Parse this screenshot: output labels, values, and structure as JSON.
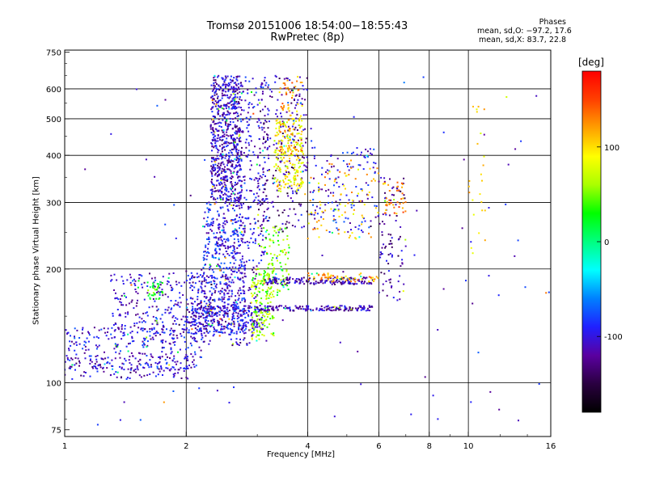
{
  "header": {
    "title_line1": "Tromsø 20151006 18:54:00−18:55:43",
    "title_line2": "RwPretec (8p)",
    "phase_title": "Phases",
    "stat_o": "mean, sd,O: −97.2, 17.6",
    "stat_x": "mean, sd,X:  83.7, 22.8"
  },
  "chart_data": {
    "type": "scatter",
    "title": "Tromsø 20151006 18:54:00−18:55:43",
    "subtitle": "RwPretec (8p)",
    "xlabel": "Frequency [MHz]",
    "ylabel": "Stationary phase Virtual Height [km]",
    "x_scale": "log",
    "y_scale": "log",
    "xlim": [
      1,
      16
    ],
    "ylim": [
      72,
      760
    ],
    "x_ticks": [
      1,
      2,
      4,
      6,
      8,
      10,
      16
    ],
    "x_tick_labels": [
      "1",
      "2",
      "4",
      "6",
      "8",
      "10",
      "16"
    ],
    "y_ticks": [
      75,
      100,
      200,
      300,
      400,
      500,
      600,
      750
    ],
    "y_tick_labels": [
      "75",
      "100",
      "200",
      "300",
      "400",
      "500",
      "600",
      "750"
    ],
    "x_gridlines": [
      1,
      2,
      4,
      6,
      8,
      10,
      16
    ],
    "y_gridlines": [
      100,
      200,
      300,
      400,
      500,
      600
    ],
    "grid": true,
    "colorbar": {
      "unit": "[deg]",
      "range": [
        -180,
        180
      ],
      "ticks": [
        100,
        0,
        -100
      ],
      "tick_labels": [
        "100",
        "0",
        "-100"
      ],
      "colors": [
        "#000000",
        "#2a0040",
        "#5a00a0",
        "#2020ff",
        "#0080ff",
        "#00ffff",
        "#00ff80",
        "#00ff00",
        "#aaff00",
        "#ffff00",
        "#ffa000",
        "#ff4000",
        "#ff0000"
      ]
    },
    "series": [
      {
        "x_range": [
          1.0,
          2.1
        ],
        "y_range": [
          102,
          118
        ],
        "phase": -110,
        "count": 120
      },
      {
        "x_range": [
          1.0,
          2.2
        ],
        "y_range": [
          108,
          140
        ],
        "phase": -100,
        "count": 260
      },
      {
        "x_range": [
          1.3,
          2.2
        ],
        "y_range": [
          130,
          195
        ],
        "phase": -105,
        "count": 260
      },
      {
        "x_range": [
          1.6,
          1.75
        ],
        "y_range": [
          165,
          185
        ],
        "phase": 30,
        "count": 40
      },
      {
        "x_range": [
          2.0,
          3.1
        ],
        "y_range": [
          135,
          160
        ],
        "phase": -100,
        "count": 300
      },
      {
        "x_range": [
          2.3,
          2.75
        ],
        "y_range": [
          300,
          650
        ],
        "phase": -110,
        "count": 700
      },
      {
        "x_range": [
          2.2,
          2.8
        ],
        "y_range": [
          150,
          300
        ],
        "phase": -95,
        "count": 420
      },
      {
        "x_range": [
          2.0,
          3.0
        ],
        "y_range": [
          125,
          200
        ],
        "phase": -110,
        "count": 200
      },
      {
        "x_range": [
          2.6,
          3.2
        ],
        "y_range": [
          200,
          650
        ],
        "phase": -100,
        "count": 260
      },
      {
        "x_range": [
          2.9,
          3.3
        ],
        "y_range": [
          130,
          200
        ],
        "phase": 60,
        "count": 140
      },
      {
        "x_range": [
          3.0,
          3.6
        ],
        "y_range": [
          170,
          260
        ],
        "phase": 50,
        "count": 120
      },
      {
        "x_range": [
          3.0,
          4.0
        ],
        "y_range": [
          250,
          650
        ],
        "phase": -120,
        "count": 220
      },
      {
        "x_range": [
          3.3,
          3.9
        ],
        "y_range": [
          320,
          500
        ],
        "phase": 90,
        "count": 220
      },
      {
        "x_range": [
          3.4,
          3.9
        ],
        "y_range": [
          400,
          650
        ],
        "phase": 120,
        "count": 80
      },
      {
        "x_range": [
          3.0,
          5.8
        ],
        "y_range": [
          155,
          160
        ],
        "phase": -110,
        "count": 160
      },
      {
        "x_range": [
          3.1,
          5.8
        ],
        "y_range": [
          182,
          190
        ],
        "phase": -115,
        "count": 170
      },
      {
        "x_range": [
          4.0,
          6.0
        ],
        "y_range": [
          185,
          195
        ],
        "phase": 120,
        "count": 60
      },
      {
        "x_range": [
          4.0,
          6.0
        ],
        "y_range": [
          250,
          420
        ],
        "phase": -100,
        "count": 140
      },
      {
        "x_range": [
          4.0,
          6.0
        ],
        "y_range": [
          240,
          380
        ],
        "phase": 110,
        "count": 90
      },
      {
        "x_range": [
          6.0,
          7.0
        ],
        "y_range": [
          165,
          350
        ],
        "phase": -120,
        "count": 90
      },
      {
        "x_range": [
          6.2,
          7.0
        ],
        "y_range": [
          280,
          340
        ],
        "phase": 130,
        "count": 40
      },
      {
        "x_range": [
          1.0,
          16.0
        ],
        "y_range": [
          75,
          650
        ],
        "phase": -100,
        "count": 90
      },
      {
        "x_range": [
          10.0,
          11.0
        ],
        "y_range": [
          200,
          600
        ],
        "phase": 100,
        "count": 25
      }
    ]
  }
}
